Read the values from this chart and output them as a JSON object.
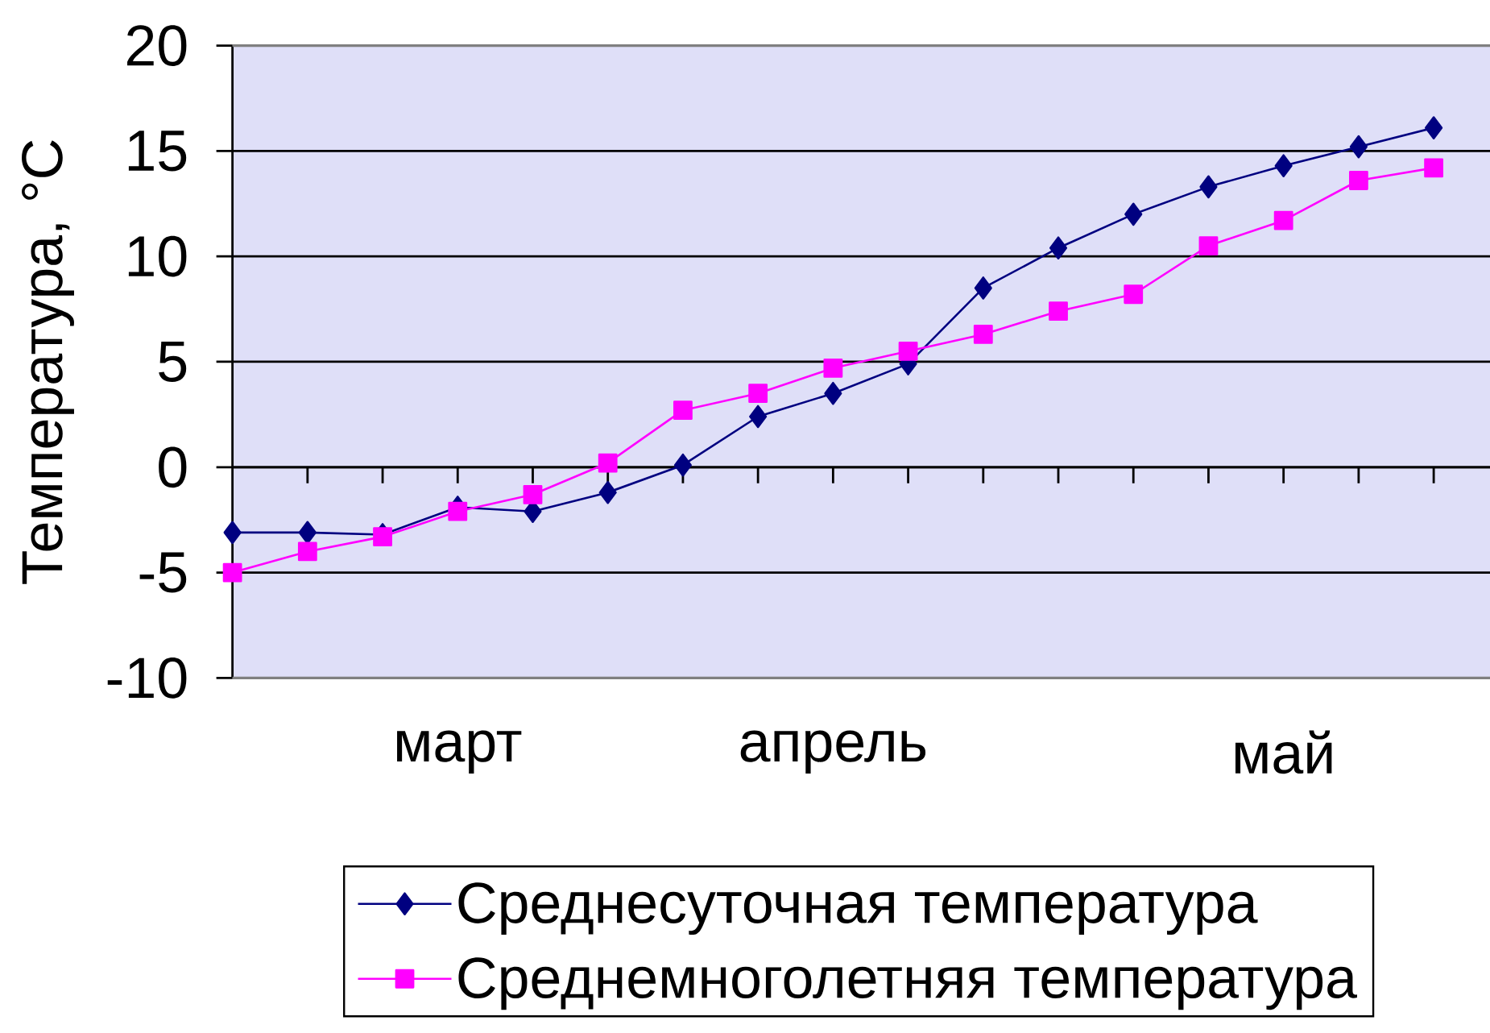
{
  "chart_data": {
    "type": "line",
    "ylabel": "Температура, °C",
    "categories": [
      null,
      null,
      null,
      "март",
      null,
      null,
      null,
      null,
      "апрель",
      null,
      null,
      null,
      null,
      null,
      "май",
      null,
      null
    ],
    "series": [
      {
        "name": "Среднесуточная температура",
        "color": "#000080",
        "marker": "diamond",
        "values": [
          -3.1,
          -3.1,
          -3.2,
          -1.9,
          -2.1,
          -1.2,
          0.1,
          2.4,
          3.5,
          4.9,
          8.5,
          10.4,
          12.0,
          13.3,
          14.3,
          15.2,
          16.1
        ]
      },
      {
        "name": "Среднемноголетняя температура",
        "color": "#ff00ff",
        "marker": "square",
        "values": [
          -5.0,
          -4.0,
          -3.3,
          -2.1,
          -1.3,
          0.2,
          2.7,
          3.5,
          4.7,
          5.5,
          6.3,
          7.4,
          8.2,
          10.5,
          11.7,
          13.6,
          14.2
        ]
      }
    ],
    "ylim": [
      -10,
      20
    ],
    "yticks": [
      -10,
      -5,
      0,
      5,
      10,
      15,
      20
    ],
    "grid": "y",
    "legend": "bottom"
  }
}
